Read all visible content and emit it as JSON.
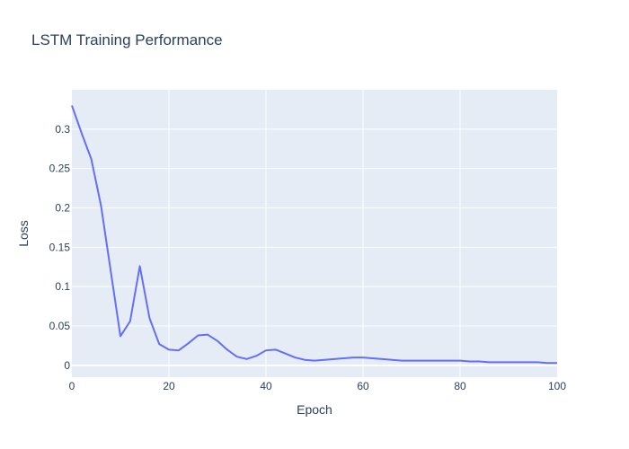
{
  "chart_data": {
    "type": "line",
    "title": "LSTM Training Performance",
    "xlabel": "Epoch",
    "ylabel": "Loss",
    "xlim": [
      0,
      100
    ],
    "ylim": [
      -0.015,
      0.35
    ],
    "x_ticks": [
      0,
      20,
      40,
      60,
      80,
      100
    ],
    "x_tick_labels": [
      "0",
      "20",
      "40",
      "60",
      "80",
      "100"
    ],
    "y_ticks": [
      0,
      0.05,
      0.1,
      0.15,
      0.2,
      0.25,
      0.3
    ],
    "y_tick_labels": [
      "0",
      "0.05",
      "0.1",
      "0.15",
      "0.2",
      "0.25",
      "0.3"
    ],
    "grid": true,
    "colors": {
      "plot_bg": "#e5ecf6",
      "grid": "#ffffff",
      "line": "#636efa",
      "text": "#2a3f5f"
    },
    "series": [
      {
        "x": [
          0,
          2,
          4,
          6,
          8,
          10,
          12,
          14,
          16,
          18,
          20,
          22,
          24,
          26,
          28,
          30,
          32,
          34,
          36,
          38,
          40,
          42,
          44,
          46,
          48,
          50,
          52,
          54,
          56,
          58,
          60,
          62,
          64,
          66,
          68,
          70,
          72,
          74,
          76,
          78,
          80,
          82,
          84,
          86,
          88,
          90,
          92,
          94,
          96,
          98,
          100
        ],
        "values": [
          0.33,
          0.295,
          0.262,
          0.203,
          0.12,
          0.037,
          0.056,
          0.126,
          0.06,
          0.027,
          0.02,
          0.019,
          0.028,
          0.038,
          0.039,
          0.031,
          0.02,
          0.011,
          0.008,
          0.012,
          0.019,
          0.02,
          0.015,
          0.01,
          0.007,
          0.006,
          0.007,
          0.008,
          0.009,
          0.01,
          0.01,
          0.009,
          0.008,
          0.007,
          0.006,
          0.006,
          0.006,
          0.006,
          0.006,
          0.006,
          0.006,
          0.005,
          0.005,
          0.004,
          0.004,
          0.004,
          0.004,
          0.004,
          0.004,
          0.003,
          0.003
        ]
      }
    ]
  }
}
